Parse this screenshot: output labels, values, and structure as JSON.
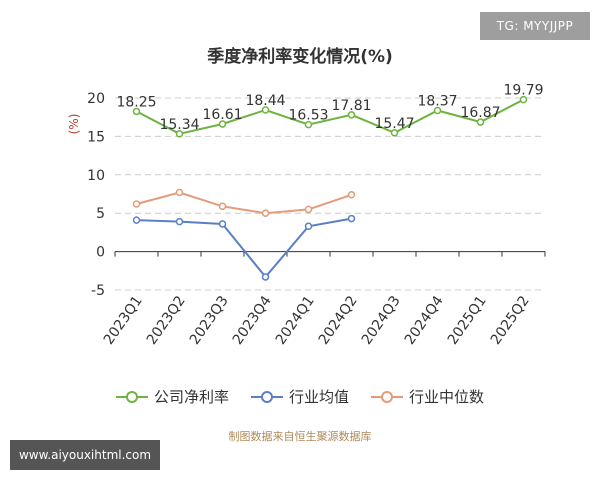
{
  "tag": "TG: MYYJJPP",
  "watermark": "www.aiyouxihtml.com",
  "source": "制图数据来自恒生聚源数据库",
  "colors": {
    "company": "#6db33f",
    "industry_avg": "#5b7fc6",
    "industry_median": "#e39b78",
    "grid": "#cccccc",
    "axis": "#333333",
    "ylabel": "#c0392b"
  },
  "chart_data": {
    "type": "line",
    "title": "季度净利率变化情况(%)",
    "ylabel": "(%)",
    "xlabel": "",
    "ylim": [
      -5,
      20
    ],
    "yticks": [
      20,
      15,
      10,
      5,
      0,
      -5
    ],
    "grid": true,
    "legend_position": "bottom",
    "categories": [
      "2023Q1",
      "2023Q2",
      "2023Q3",
      "2023Q4",
      "2024Q1",
      "2024Q2",
      "2024Q3",
      "2024Q4",
      "2025Q1",
      "2025Q2"
    ],
    "series": [
      {
        "name": "公司净利率",
        "color": "#6db33f",
        "values": [
          18.25,
          15.34,
          16.61,
          18.44,
          16.53,
          17.81,
          15.47,
          18.37,
          16.87,
          19.79
        ],
        "labels": [
          "18.25",
          "15.34",
          "16.61",
          "18.44",
          "16.53",
          "17.81",
          "15.47",
          "18.37",
          "16.87",
          "19.79"
        ]
      },
      {
        "name": "行业均值",
        "color": "#5b7fc6",
        "values": [
          4.1,
          3.9,
          3.6,
          -3.3,
          3.3,
          4.3,
          null,
          null,
          null,
          null
        ]
      },
      {
        "name": "行业中位数",
        "color": "#e39b78",
        "values": [
          6.2,
          7.7,
          5.9,
          5.0,
          5.5,
          7.4,
          null,
          null,
          null,
          null
        ]
      }
    ]
  }
}
